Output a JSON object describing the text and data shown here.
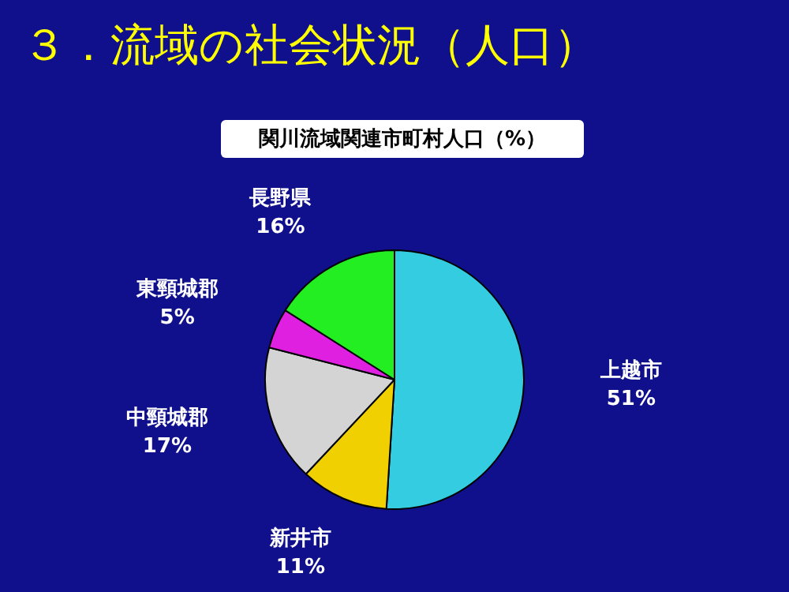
{
  "chart_data": {
    "type": "pie",
    "title": "３．流域の社会状況（人口）",
    "subtitle": "関川流域関連市町村人口（%）",
    "categories": [
      "上越市",
      "新井市",
      "中頸城郡",
      "東頸城郡",
      "長野県"
    ],
    "values": [
      51,
      11,
      17,
      5,
      16
    ],
    "value_labels": [
      "51%",
      "11%",
      "17%",
      "5%",
      "16%"
    ],
    "colors": [
      "#33cce0",
      "#f0d000",
      "#d4d4d4",
      "#e020e0",
      "#22ee22"
    ],
    "legend": false
  }
}
